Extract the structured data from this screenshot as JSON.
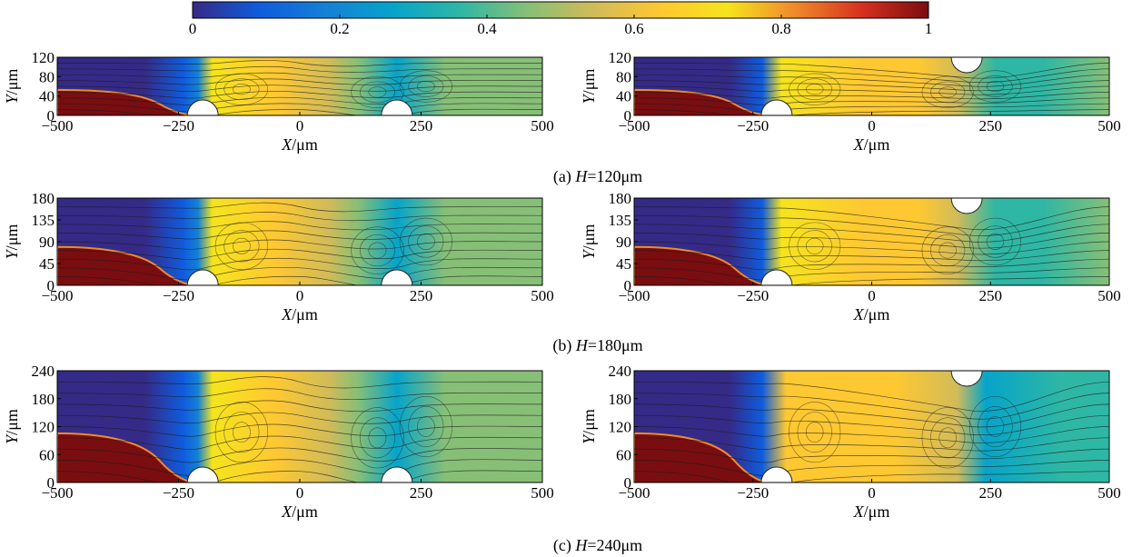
{
  "chart_data": {
    "type": "heatmap",
    "colorbar": {
      "min": 0,
      "max": 1,
      "tick_labels": [
        "0",
        "0.2",
        "0.4",
        "0.6",
        "0.8",
        "1"
      ],
      "colors": [
        "#352a87",
        "#0f5cdd",
        "#1481d6",
        "#06a4ca",
        "#2eb7a4",
        "#87bf77",
        "#d1bb59",
        "#fec832",
        "#f5e41d",
        "#f08a2a",
        "#d7301f",
        "#7a0d10"
      ]
    },
    "x_axis": {
      "label_var": "X",
      "label_unit": "/μm",
      "range": [
        -500,
        500
      ],
      "tick_labels": [
        "−500",
        "−250",
        "0",
        "250",
        "500"
      ]
    },
    "y_axis": {
      "label_var": "Y",
      "label_unit": "/μm"
    },
    "rows": [
      {
        "caption_prefix": "(a) ",
        "caption_var": "H",
        "caption_value": "=120μm",
        "height": 120,
        "y_tick_labels": [
          "0",
          "40",
          "80",
          "120"
        ]
      },
      {
        "caption_prefix": "(b) ",
        "caption_var": "H",
        "caption_value": "=180μm",
        "height": 180,
        "y_tick_labels": [
          "0",
          "45",
          "90",
          "135",
          "180"
        ]
      },
      {
        "caption_prefix": "(c) ",
        "caption_var": "H",
        "caption_value": "=240μm",
        "height": 240,
        "y_tick_labels": [
          "0",
          "60",
          "120",
          "180",
          "240"
        ]
      }
    ],
    "panels": [
      {
        "id": "a-left",
        "row": 0,
        "config": "both-bottom",
        "obstacles_x": [
          -200,
          200
        ],
        "obstacles_side": [
          "bottom",
          "bottom"
        ]
      },
      {
        "id": "a-right",
        "row": 0,
        "config": "bottom-top",
        "obstacles_x": [
          -200,
          200
        ],
        "obstacles_side": [
          "bottom",
          "top"
        ]
      },
      {
        "id": "b-left",
        "row": 1,
        "config": "both-bottom",
        "obstacles_x": [
          -200,
          200
        ],
        "obstacles_side": [
          "bottom",
          "bottom"
        ]
      },
      {
        "id": "b-right",
        "row": 1,
        "config": "bottom-top",
        "obstacles_x": [
          -200,
          200
        ],
        "obstacles_side": [
          "bottom",
          "top"
        ]
      },
      {
        "id": "c-left",
        "row": 2,
        "config": "both-bottom",
        "obstacles_x": [
          -200,
          200
        ],
        "obstacles_side": [
          "bottom",
          "bottom"
        ]
      },
      {
        "id": "c-right",
        "row": 2,
        "config": "bottom-top",
        "obstacles_x": [
          -200,
          200
        ],
        "obstacles_side": [
          "bottom",
          "top"
        ]
      }
    ]
  }
}
